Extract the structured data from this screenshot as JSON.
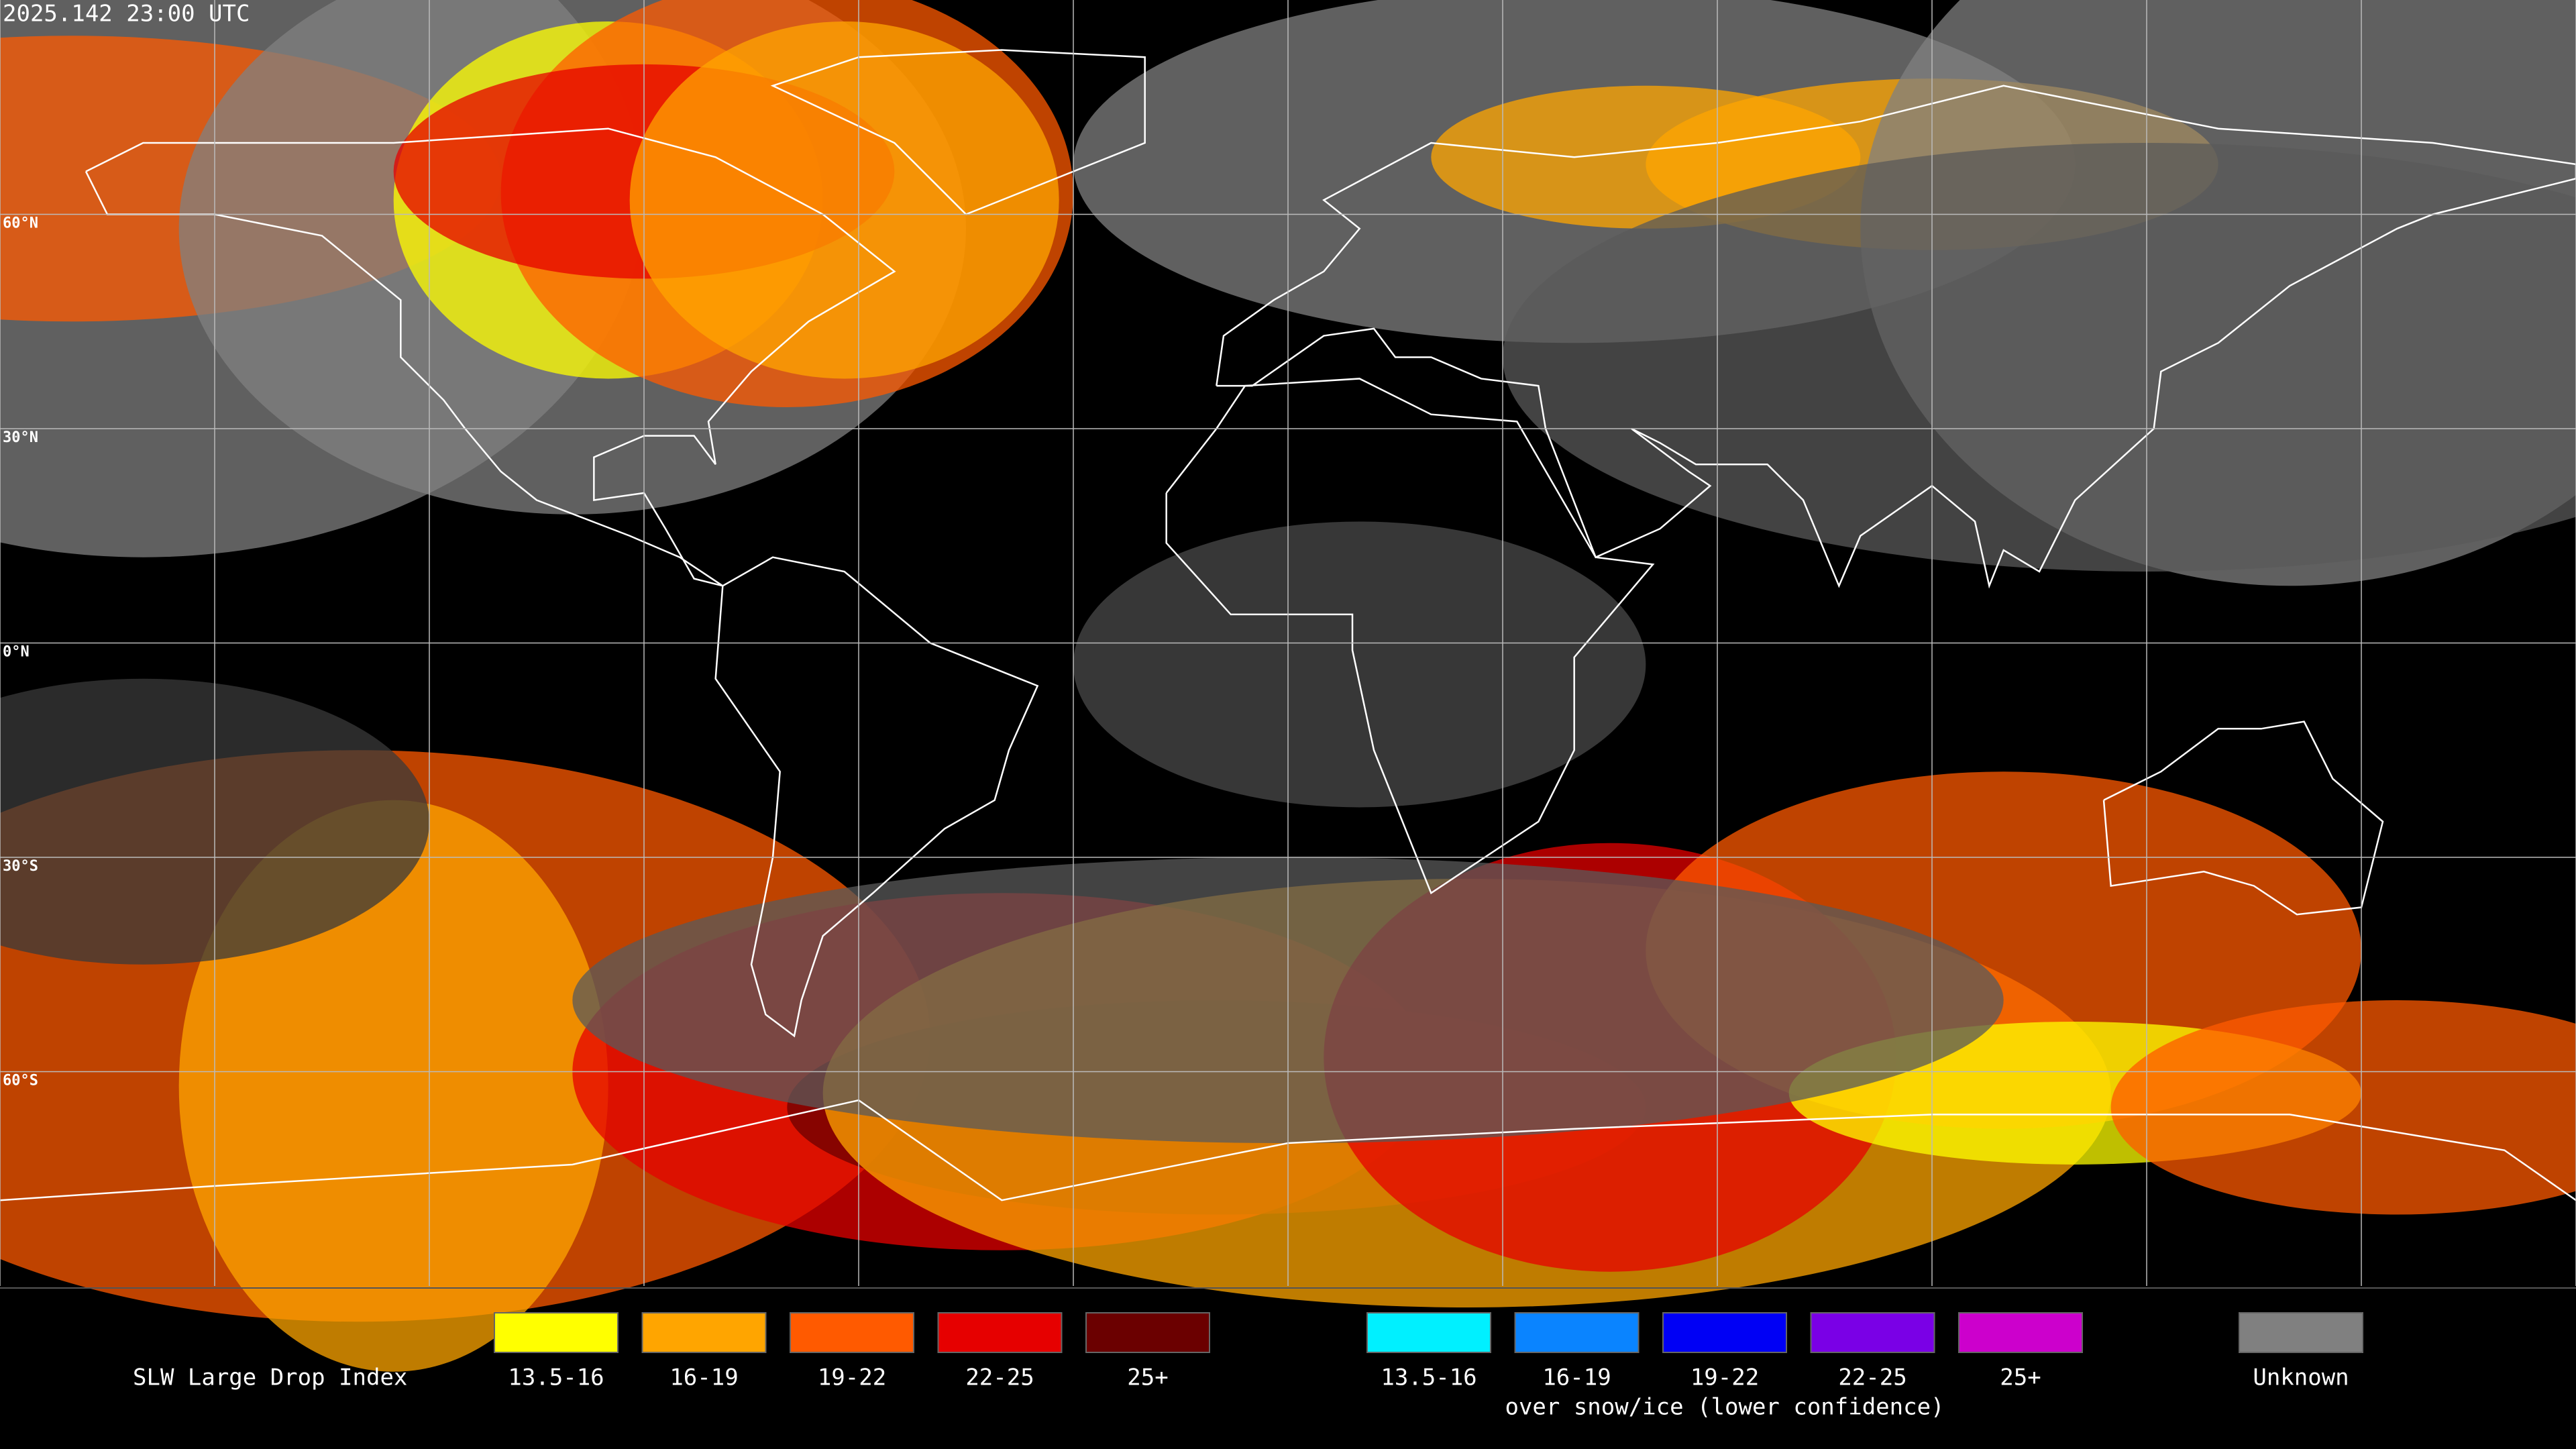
{
  "timestamp": "2025.142 23:00 UTC",
  "map": {
    "latitude_labels": [
      "60°N",
      "30°N",
      "0°N",
      "30°S",
      "60°S"
    ]
  },
  "legend": {
    "title": "SLW Large Drop Index",
    "groups": [
      {
        "items": [
          {
            "label": "13.5-16",
            "color": "#ffff00"
          },
          {
            "label": "16-19",
            "color": "#ffa500"
          },
          {
            "label": "19-22",
            "color": "#ff5a00"
          },
          {
            "label": "22-25",
            "color": "#e60000"
          },
          {
            "label": "25+",
            "color": "#6b0000"
          }
        ]
      },
      {
        "caption": "over snow/ice (lower confidence)",
        "items": [
          {
            "label": "13.5-16",
            "color": "#00f0ff"
          },
          {
            "label": "16-19",
            "color": "#0a84ff"
          },
          {
            "label": "19-22",
            "color": "#0000f5"
          },
          {
            "label": "22-25",
            "color": "#7a00e6"
          },
          {
            "label": "25+",
            "color": "#cc00cc"
          }
        ]
      },
      {
        "items": [
          {
            "label": "Unknown",
            "color": "#808080"
          }
        ]
      }
    ]
  }
}
